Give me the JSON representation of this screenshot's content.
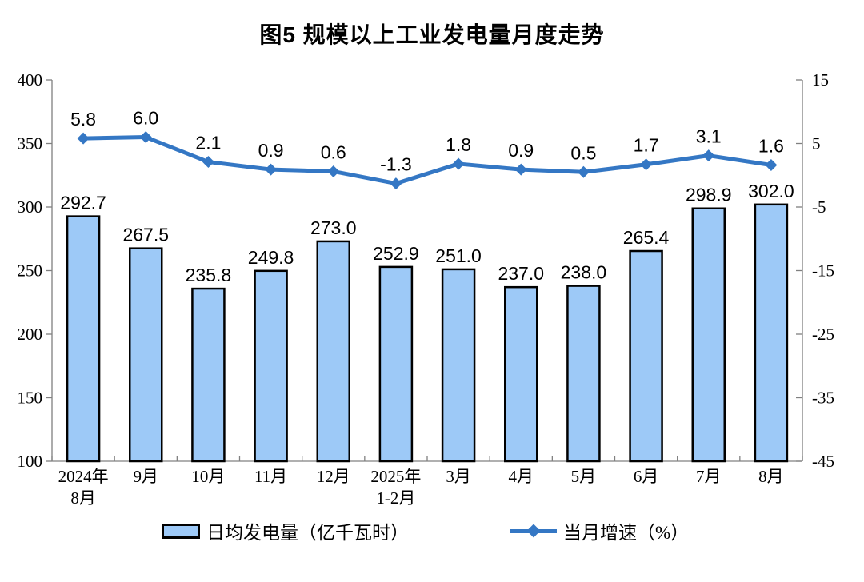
{
  "title": "图5  规模以上工业发电量月度走势",
  "chart_data": {
    "type": "bar",
    "subtype": "bar+line combo, dual y-axis",
    "categories": [
      "2024年\n8月",
      "9月",
      "10月",
      "11月",
      "12月",
      "2025年\n1-2月",
      "3月",
      "4月",
      "5月",
      "6月",
      "7月",
      "8月"
    ],
    "series": [
      {
        "name": "日均发电量（亿千瓦时）",
        "type": "bar",
        "axis": "left",
        "values": [
          292.7,
          267.5,
          235.8,
          249.8,
          273.0,
          252.9,
          251.0,
          237.0,
          238.0,
          265.4,
          298.9,
          302.0
        ],
        "labels": [
          "292.7",
          "267.5",
          "235.8",
          "249.8",
          "273.0",
          "252.9",
          "251.0",
          "237.0",
          "238.0",
          "265.4",
          "298.9",
          "302.0"
        ]
      },
      {
        "name": "当月增速（%）",
        "type": "line",
        "axis": "right",
        "values": [
          5.8,
          6.0,
          2.1,
          0.9,
          0.6,
          -1.3,
          1.8,
          0.9,
          0.5,
          1.7,
          3.1,
          1.6
        ],
        "labels": [
          "5.8",
          "6.0",
          "2.1",
          "0.9",
          "0.6",
          "-1.3",
          "1.8",
          "0.9",
          "0.5",
          "1.7",
          "3.1",
          "1.6"
        ]
      }
    ],
    "left_axis": {
      "min": 100,
      "max": 400,
      "step": 50,
      "tick_labels": [
        "400",
        "350",
        "300",
        "250",
        "200",
        "150",
        "100"
      ]
    },
    "right_axis": {
      "min": -45,
      "max": 15,
      "step": 10,
      "tick_labels": [
        "15",
        "5",
        "-5",
        "-15",
        "-25",
        "-35",
        "-45"
      ]
    },
    "grid": false,
    "legend_position": "bottom",
    "colors": {
      "bar_fill": "#9DC9F7",
      "bar_border": "#000000",
      "line": "#3477C4",
      "axis": "#808080",
      "text": "#000000"
    }
  }
}
